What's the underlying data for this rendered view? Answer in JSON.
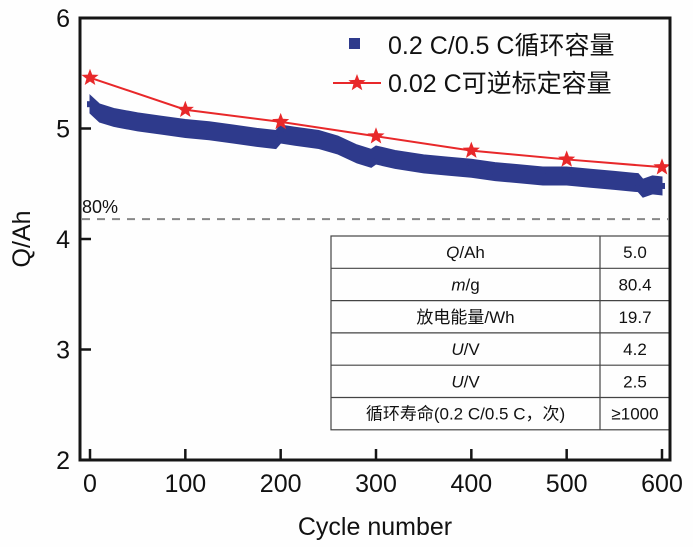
{
  "chart_data": {
    "type": "line",
    "title": "",
    "xlabel": "Cycle number",
    "ylabel": "Q/Ah",
    "xlim": [
      -10,
      610
    ],
    "ylim": [
      2,
      6
    ],
    "xticks": [
      0,
      100,
      200,
      300,
      400,
      500,
      600
    ],
    "yticks": [
      2,
      3,
      4,
      5,
      6
    ],
    "grid": false,
    "legend_position": "top-right",
    "series": [
      {
        "name": "0.2 C/0.5 C循环容量",
        "marker": "square",
        "color": "#2e3a8c",
        "x": [
          0,
          10,
          25,
          50,
          75,
          100,
          125,
          150,
          175,
          195,
          200,
          215,
          240,
          260,
          280,
          295,
          300,
          320,
          350,
          375,
          400,
          425,
          450,
          475,
          500,
          525,
          550,
          575,
          580,
          590,
          600
        ],
        "y": [
          5.22,
          5.14,
          5.1,
          5.06,
          5.03,
          5.0,
          4.98,
          4.95,
          4.92,
          4.9,
          4.95,
          4.93,
          4.9,
          4.85,
          4.77,
          4.73,
          4.76,
          4.72,
          4.68,
          4.66,
          4.64,
          4.61,
          4.59,
          4.57,
          4.57,
          4.55,
          4.53,
          4.51,
          4.46,
          4.49,
          4.48
        ]
      },
      {
        "name": "0.02 C可逆标定容量",
        "marker": "star",
        "color": "#e8282a",
        "x": [
          0,
          100,
          200,
          300,
          400,
          500,
          600
        ],
        "y": [
          5.46,
          5.17,
          5.06,
          4.93,
          4.8,
          4.72,
          4.65
        ]
      }
    ],
    "reference_line": {
      "y": 4.18,
      "label": "80%",
      "style": "dashed",
      "color": "#888888"
    },
    "table": {
      "rows": [
        {
          "param": "Q/Ah",
          "value": "5.0"
        },
        {
          "param": "m/g",
          "value": "80.4"
        },
        {
          "param": "放电能量/Wh",
          "value": "19.7"
        },
        {
          "param": "U/V",
          "value": "4.2"
        },
        {
          "param": "U/V",
          "value": "2.5"
        },
        {
          "param": "循环寿命(0.2 C/0.5 C，次)",
          "value": "≥1000"
        }
      ]
    }
  },
  "labels": {
    "x_ticks": [
      "0",
      "100",
      "200",
      "300",
      "400",
      "500",
      "600"
    ],
    "y_ticks": [
      "2",
      "3",
      "4",
      "5",
      "6"
    ]
  }
}
